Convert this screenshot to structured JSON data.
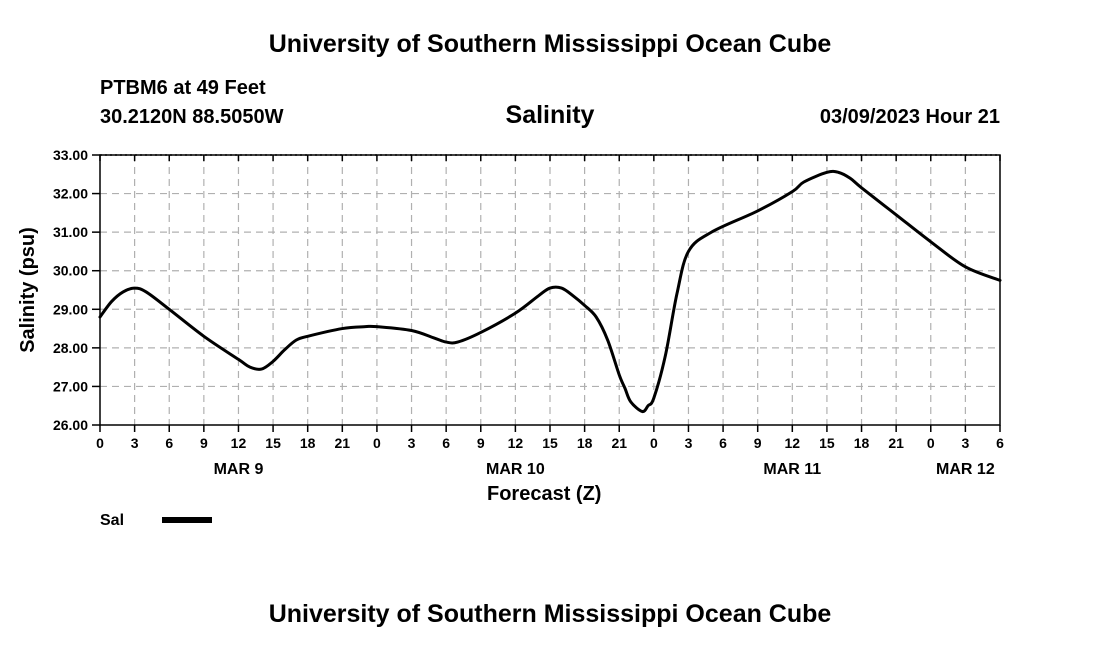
{
  "header": {
    "title": "University of Southern Mississippi Ocean Cube",
    "station": "PTBM6 at 49 Feet",
    "coords": "30.2120N  88.5050W",
    "datetime": "03/09/2023 Hour 21"
  },
  "footer": {
    "title": "University of Southern Mississippi Ocean Cube"
  },
  "chart_data": {
    "type": "line",
    "title": "Salinity",
    "xlabel": "Forecast (Z)",
    "ylabel": "Salinity (psu)",
    "xlim": [
      0,
      78
    ],
    "ylim": [
      26,
      33
    ],
    "yticks": [
      "26.00",
      "27.00",
      "28.00",
      "29.00",
      "30.00",
      "31.00",
      "32.00",
      "33.00"
    ],
    "xticks": [
      "0",
      "3",
      "6",
      "9",
      "12",
      "15",
      "18",
      "21",
      "0",
      "3",
      "6",
      "9",
      "12",
      "15",
      "18",
      "21",
      "0",
      "3",
      "6",
      "9",
      "12",
      "15",
      "18",
      "21",
      "0",
      "3",
      "6"
    ],
    "day_labels": [
      {
        "label": "MAR 9",
        "hour": 12
      },
      {
        "label": "MAR 10",
        "hour": 36
      },
      {
        "label": "MAR 11",
        "hour": 60
      },
      {
        "label": "MAR 12",
        "hour": 75
      }
    ],
    "grid": true,
    "series": [
      {
        "name": "Sal",
        "color": "#000000",
        "x": [
          0,
          1,
          2,
          3,
          4,
          6,
          9,
          12,
          13,
          14,
          15,
          16,
          17,
          18,
          21,
          23,
          24,
          27,
          29,
          30,
          31,
          33,
          36,
          38,
          39,
          40,
          41,
          42,
          43,
          44,
          45,
          45.5,
          46,
          47,
          47.5,
          48,
          49,
          50,
          51,
          53,
          57,
          60,
          61,
          63,
          64,
          65,
          66,
          69,
          72,
          75,
          78
        ],
        "values": [
          28.8,
          29.2,
          29.45,
          29.55,
          29.45,
          29.0,
          28.3,
          27.7,
          27.5,
          27.45,
          27.65,
          27.95,
          28.2,
          28.3,
          28.5,
          28.55,
          28.55,
          28.45,
          28.25,
          28.15,
          28.15,
          28.4,
          28.9,
          29.35,
          29.55,
          29.55,
          29.35,
          29.1,
          28.8,
          28.2,
          27.3,
          26.95,
          26.6,
          26.35,
          26.5,
          26.7,
          27.8,
          29.4,
          30.5,
          31.0,
          31.55,
          32.05,
          32.3,
          32.55,
          32.55,
          32.4,
          32.15,
          31.45,
          30.75,
          30.1,
          29.75
        ]
      }
    ],
    "legend": {
      "label": "Sal",
      "position": "bottom-left"
    }
  }
}
